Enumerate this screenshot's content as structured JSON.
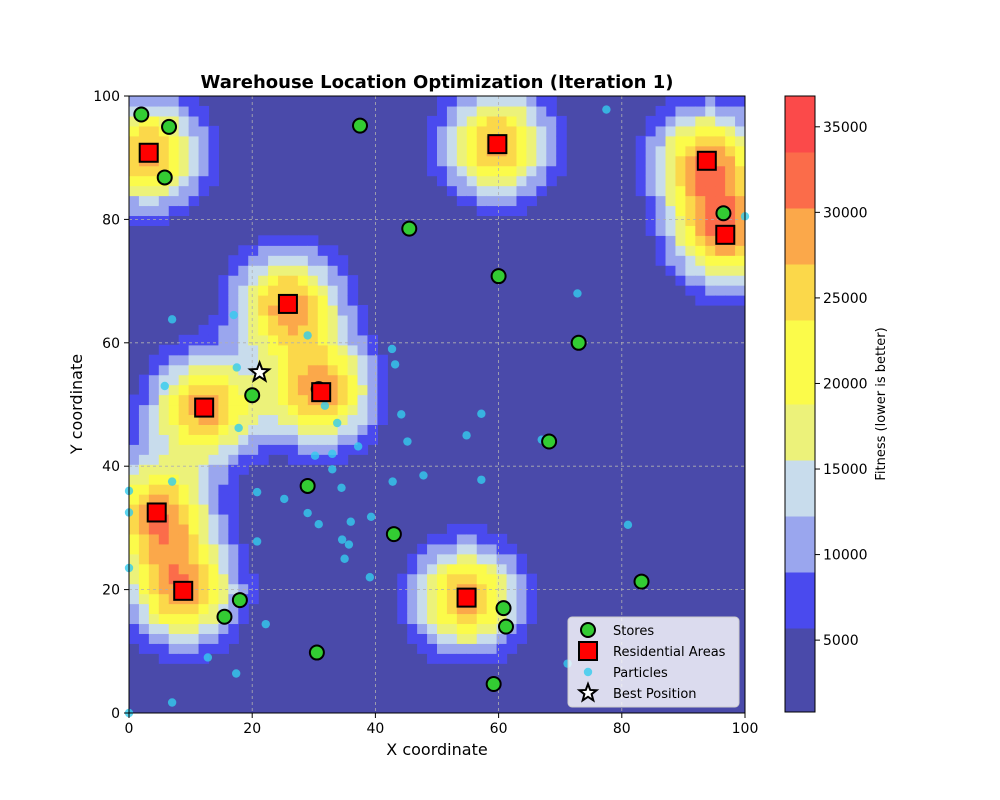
{
  "chart_data": {
    "type": "scatter",
    "title": "Warehouse Location Optimization (Iteration 1)",
    "xlabel": "X coordinate",
    "ylabel": "Y coordinate",
    "xlim": [
      0,
      100
    ],
    "ylim": [
      0,
      100
    ],
    "xticks": [
      "0",
      "20",
      "40",
      "60",
      "80",
      "100"
    ],
    "yticks": [
      "0",
      "20",
      "40",
      "60",
      "80",
      "100"
    ],
    "grid": true,
    "legend_position": "lower-right",
    "background": {
      "type": "heatmap",
      "colorbar_label": "Fitness (lower is better)",
      "colorbar_range": [
        800,
        36800
      ],
      "colorbar_ticks": [
        "5000",
        "10000",
        "15000",
        "20000",
        "25000",
        "30000",
        "35000"
      ],
      "colors": [
        "#4a4aaa",
        "#4a4aee",
        "#9aa6ee",
        "#c8dcec",
        "#ecf27a",
        "#fbfb4a",
        "#fbd84a",
        "#fba84a",
        "#fb6c4a",
        "#fb4a4a"
      ]
    },
    "series": [
      {
        "name": "Stores",
        "color": "#33cc33",
        "marker": "circle",
        "points": [
          [
            2,
            97
          ],
          [
            6.5,
            95
          ],
          [
            5.8,
            86.8
          ],
          [
            37.5,
            95.2
          ],
          [
            45.5,
            78.5
          ],
          [
            60,
            70.8
          ],
          [
            96.5,
            81
          ],
          [
            73,
            60
          ],
          [
            20,
            51.5
          ],
          [
            30.8,
            52.5
          ],
          [
            68.2,
            44
          ],
          [
            29,
            36.8
          ],
          [
            43,
            29
          ],
          [
            83.2,
            21.3
          ],
          [
            18,
            18.3
          ],
          [
            15.5,
            15.6
          ],
          [
            60.8,
            17
          ],
          [
            61.2,
            14
          ],
          [
            30.5,
            9.8
          ],
          [
            59.2,
            4.7
          ]
        ]
      },
      {
        "name": "Residential Areas",
        "color": "#ff0000",
        "marker": "square",
        "points": [
          [
            3.2,
            90.8
          ],
          [
            59.8,
            92.2
          ],
          [
            93.8,
            89.5
          ],
          [
            96.8,
            77.5
          ],
          [
            25.8,
            66.3
          ],
          [
            31.2,
            52
          ],
          [
            12.2,
            49.5
          ],
          [
            4.5,
            32.5
          ],
          [
            8.8,
            19.8
          ],
          [
            54.8,
            18.7
          ]
        ]
      },
      {
        "name": "Particles",
        "color": "#33ccee",
        "marker": "circle",
        "points": [
          [
            77.5,
            97.8
          ],
          [
            100,
            80.5
          ],
          [
            72.8,
            68
          ],
          [
            7,
            63.8
          ],
          [
            17,
            64.5
          ],
          [
            29,
            61.2
          ],
          [
            42.7,
            59
          ],
          [
            43.2,
            56.5
          ],
          [
            17.5,
            56
          ],
          [
            5.8,
            53
          ],
          [
            31.8,
            49.8
          ],
          [
            44.2,
            48.4
          ],
          [
            57.2,
            48.5
          ],
          [
            33.8,
            47
          ],
          [
            17.8,
            46.2
          ],
          [
            54.8,
            45
          ],
          [
            45.2,
            44
          ],
          [
            67,
            44.3
          ],
          [
            37.2,
            43.2
          ],
          [
            30.2,
            41.7
          ],
          [
            33,
            42
          ],
          [
            33,
            39.5
          ],
          [
            47.8,
            38.5
          ],
          [
            7,
            37.5
          ],
          [
            42.8,
            37.5
          ],
          [
            57.2,
            37.8
          ],
          [
            34.5,
            36.5
          ],
          [
            0,
            36
          ],
          [
            20.8,
            35.8
          ],
          [
            25.2,
            34.7
          ],
          [
            39.3,
            31.8
          ],
          [
            29,
            32.4
          ],
          [
            0,
            32.5
          ],
          [
            36,
            31
          ],
          [
            30.8,
            30.6
          ],
          [
            81,
            30.5
          ],
          [
            34.6,
            28.1
          ],
          [
            20.8,
            27.8
          ],
          [
            35.7,
            27.3
          ],
          [
            35,
            25
          ],
          [
            0,
            23.5
          ],
          [
            39.1,
            22
          ],
          [
            22.2,
            14.4
          ],
          [
            12.8,
            9
          ],
          [
            71.2,
            8
          ],
          [
            17.4,
            6.4
          ],
          [
            7,
            1.7
          ],
          [
            0,
            0
          ]
        ]
      },
      {
        "name": "Best Position",
        "color": "#ffffff",
        "marker": "star",
        "points": [
          [
            21.2,
            55.2
          ]
        ]
      }
    ]
  }
}
